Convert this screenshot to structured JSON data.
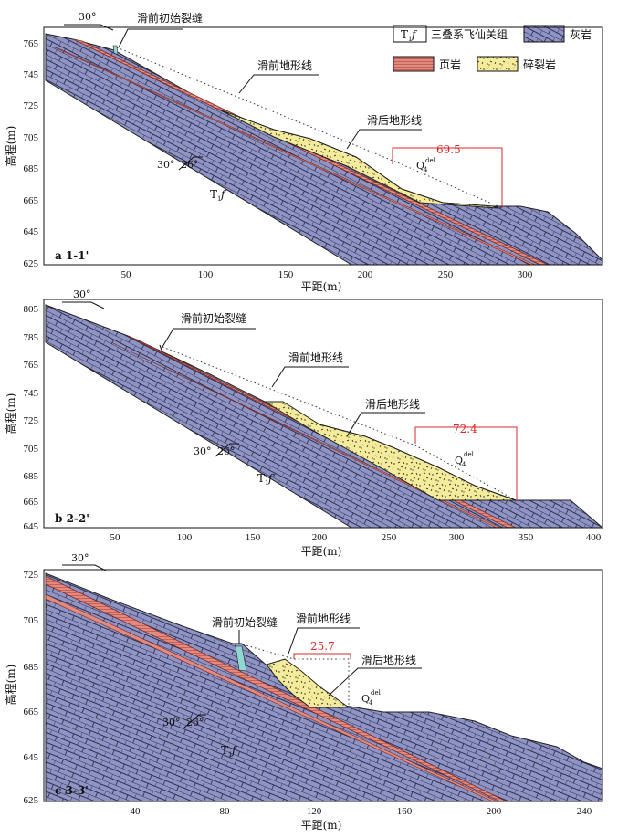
{
  "legend": {
    "t1f_symbol": "T",
    "t1f_sub": "1",
    "t1f_f": "f",
    "t1f_label": "三叠系飞仙关组",
    "limestone_label": "灰岩",
    "shale_label": "页岩",
    "breccia_label": "碎裂岩"
  },
  "colors": {
    "limestone": "#8f94c4",
    "limestone_line": "#2e3150",
    "shale": "#e38a80",
    "breccia": "#f4ec9a",
    "crack": "#8fd7d0",
    "dimension": "#d92a2a"
  },
  "common": {
    "y_label": "高程(m)",
    "x_label": "平距(m)",
    "crack_label": "滑前初始裂缝",
    "pre_terrain_label": "滑前地形线",
    "post_terrain_label": "滑后地形线",
    "q_label": "Q",
    "q_sub": "4",
    "q_sup": "del",
    "t1f_label_T": "T",
    "t1f_label_sub": "1",
    "t1f_label_f": "f",
    "slope_angle": "30°",
    "dip_angle_a": "30°",
    "dip_angle_b": "26°"
  },
  "panels": [
    {
      "id": "a",
      "label": "a 1-1'",
      "y_ticks": [
        "765",
        "745",
        "725",
        "705",
        "685",
        "665",
        "645",
        "625"
      ],
      "x_ticks": [
        "50",
        "100",
        "150",
        "200",
        "250",
        "300"
      ],
      "distance": "69.5"
    },
    {
      "id": "b",
      "label": "b 2-2'",
      "y_ticks": [
        "805",
        "785",
        "765",
        "745",
        "725",
        "705",
        "685",
        "665",
        "645"
      ],
      "x_ticks": [
        "50",
        "100",
        "150",
        "200",
        "250",
        "300",
        "350",
        "400"
      ],
      "distance": "72.4"
    },
    {
      "id": "c",
      "label": "c 3-3'",
      "y_ticks": [
        "725",
        "705",
        "685",
        "665",
        "645",
        "625"
      ],
      "x_ticks": [
        "40",
        "80",
        "120",
        "160",
        "200",
        "240"
      ],
      "distance": "25.7"
    }
  ]
}
